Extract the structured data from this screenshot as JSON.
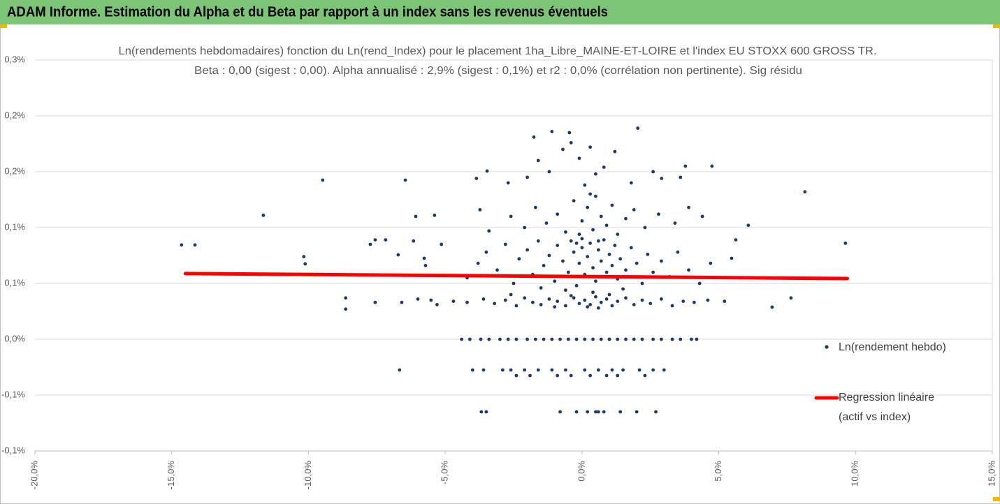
{
  "chart_data": {
    "type": "scatter",
    "header": "ADAM Informe. Estimation du Alpha et du Beta par rapport à un index sans les revenus éventuels",
    "title": "Ln(rendements hebdomadaires) fonction du Ln(rend_Index) pour le placement 1ha_Libre_MAINE-ET-LOIRE et l'index EU STOXX 600 GROSS TR.",
    "subtitle": "Beta : 0,00 (sigest : 0,00). Alpha annualisé : 2,9% (sigest : 0,1%) et r2 : 0,0% (corrélation non pertinente). Sig résidu",
    "xlim": [
      -20,
      15
    ],
    "xticks": [
      {
        "value": -20,
        "label": "-20,0%"
      },
      {
        "value": -15,
        "label": "-15,0%"
      },
      {
        "value": -10,
        "label": "-10,0%"
      },
      {
        "value": -5,
        "label": "-5,0%"
      },
      {
        "value": 0,
        "label": "0,0%"
      },
      {
        "value": 5,
        "label": "5,0%"
      },
      {
        "value": 10,
        "label": "10,0%"
      },
      {
        "value": 15,
        "label": "15,0%"
      }
    ],
    "ylim": [
      -0.1,
      0.25
    ],
    "yticks": [
      {
        "value": 0.25,
        "label": "0,3%"
      },
      {
        "value": 0.2,
        "label": "0,2%"
      },
      {
        "value": 0.15,
        "label": "0,2%"
      },
      {
        "value": 0.1,
        "label": "0,1%"
      },
      {
        "value": 0.05,
        "label": "0,1%"
      },
      {
        "value": 0,
        "label": "0,0%"
      },
      {
        "value": -0.05,
        "label": "-0,1%"
      },
      {
        "value": -0.1,
        "label": "-0,1%"
      }
    ],
    "grid": true,
    "legend": "right",
    "series": [
      {
        "name": "Ln(rendement hebdo)",
        "color": "#203864",
        "x": [
          -14.64,
          -14.15,
          -11.65,
          -10.17,
          -10.12,
          -9.48,
          -8.64,
          -8.64,
          -7.56,
          -7.74,
          -7.56,
          -7.18,
          -6.72,
          -6.67,
          -6.46,
          -6.59,
          -6.08,
          -6.16,
          -5.77,
          -5.72,
          -5.39,
          -5.52,
          -5.14,
          -3.68,
          -3.86,
          -3.47,
          -3.73,
          6.95,
          7.64,
          8.15,
          9.63,
          6.08,
          5.62,
          5.47,
          5.21,
          4.75,
          3.78,
          2.91,
          2.04,
          -1.1,
          -1.76,
          -0.46,
          -4.4,
          -4.1,
          -3.7,
          -3.4,
          -3.0,
          -2.7,
          -2.4,
          -2.0,
          -1.7,
          -1.4,
          -1.1,
          -0.8,
          -0.5,
          -0.2,
          0.1,
          0.4,
          0.7,
          1.0,
          1.3,
          1.6,
          1.9,
          2.2,
          2.6,
          2.9,
          3.3,
          3.6,
          4.0,
          4.19,
          -4.0,
          -3.6,
          -2.9,
          -2.6,
          -2.1,
          -1.6,
          -1.1,
          -0.6,
          0.1,
          0.6,
          1.1,
          1.5,
          2.1,
          2.6,
          3.0,
          -2.4,
          -1.9,
          -0.9,
          -0.4,
          0.3,
          0.9,
          1.3,
          2.3,
          -3.5,
          -0.8,
          -0.2,
          0.2,
          0.5,
          0.6,
          0.8,
          1.4,
          2.0,
          2.7,
          -6.0,
          -5.3,
          -4.7,
          -4.2,
          -3.6,
          -3.2,
          -2.8,
          -2.4,
          -2.1,
          -1.8,
          -1.5,
          -1.2,
          -0.9,
          -0.6,
          -0.3,
          -0.1,
          0.1,
          0.3,
          0.5,
          0.7,
          0.9,
          1.1,
          1.3,
          1.6,
          1.9,
          2.2,
          2.5,
          2.9,
          3.3,
          3.7,
          4.1,
          4.6,
          0.2,
          -0.4,
          1.0,
          -1.0,
          0.6,
          -2.6,
          -4.2,
          -3.8,
          -3.5,
          -3.1,
          -2.8,
          -2.5,
          -2.3,
          -2.0,
          -1.8,
          -1.6,
          -1.4,
          -1.2,
          -1.0,
          -0.9,
          -0.7,
          -0.5,
          -0.4,
          -0.3,
          -0.2,
          -0.1,
          0.0,
          0.1,
          0.2,
          0.3,
          0.4,
          0.5,
          0.6,
          0.7,
          0.8,
          0.9,
          1.0,
          1.1,
          1.2,
          1.3,
          1.4,
          1.6,
          1.8,
          2.0,
          2.2,
          2.4,
          2.6,
          2.9,
          3.2,
          3.5,
          3.9,
          4.3,
          4.7,
          -0.6,
          0.4,
          1.5,
          -1.5,
          0.0,
          0.6,
          -0.2,
          -3.4,
          -2.6,
          -2.1,
          -1.7,
          -1.3,
          -0.9,
          -0.6,
          -0.3,
          0.0,
          0.2,
          0.4,
          0.5,
          0.7,
          0.9,
          1.1,
          1.3,
          1.6,
          1.9,
          2.3,
          2.8,
          3.4,
          3.9,
          4.4,
          -0.1,
          0.3,
          -2.0,
          -1.6,
          -1.2,
          -0.7,
          -0.4,
          -0.1,
          0.3,
          0.5,
          0.8,
          1.2,
          1.8,
          2.6,
          3.6,
          -2.7,
          0.1
        ],
        "values": [
          0.0844,
          0.0844,
          0.111,
          0.074,
          0.0675,
          0.1425,
          0.037,
          0.027,
          0.033,
          0.085,
          0.089,
          0.089,
          0.0756,
          -0.0275,
          0.1425,
          0.033,
          0.11,
          0.088,
          0.0725,
          0.066,
          0.111,
          0.035,
          0.085,
          -0.065,
          0.144,
          0.1506,
          0.116,
          0.0288,
          0.037,
          0.132,
          0.086,
          0.102,
          0.089,
          0.0725,
          0.034,
          0.155,
          0.155,
          0.144,
          0.189,
          0.186,
          0.181,
          0.185,
          0,
          0,
          0,
          0,
          0,
          0,
          0,
          0,
          0,
          0,
          0,
          0,
          0,
          0,
          0,
          0,
          0,
          0,
          0,
          0,
          0,
          0,
          0,
          0,
          0,
          0,
          0,
          0,
          -0.0275,
          -0.0275,
          -0.0275,
          -0.0275,
          -0.0275,
          -0.0275,
          -0.0275,
          -0.0275,
          -0.0275,
          -0.0275,
          -0.0275,
          -0.0275,
          -0.0275,
          -0.0275,
          -0.0275,
          -0.0325,
          -0.0325,
          -0.0325,
          -0.0325,
          -0.0325,
          -0.0325,
          -0.0325,
          -0.0325,
          -0.065,
          -0.065,
          -0.065,
          -0.065,
          -0.065,
          -0.065,
          -0.065,
          -0.065,
          -0.065,
          -0.065,
          0.036,
          0.031,
          0.034,
          0.033,
          0.036,
          0.032,
          0.035,
          0.03,
          0.037,
          0.033,
          0.031,
          0.036,
          0.034,
          0.03,
          0.037,
          0.032,
          0.035,
          0.031,
          0.038,
          0.033,
          0.036,
          0.03,
          0.034,
          0.037,
          0.031,
          0.035,
          0.032,
          0.036,
          0.03,
          0.034,
          0.033,
          0.035,
          0.029,
          0.039,
          0.04,
          0.029,
          0.028,
          0.04,
          0.055,
          0.068,
          0.078,
          0.062,
          0.085,
          0.05,
          0.072,
          0.08,
          0.058,
          0.088,
          0.066,
          0.075,
          0.052,
          0.084,
          0.07,
          0.06,
          0.088,
          0.078,
          0.048,
          0.068,
          0.082,
          0.058,
          0.074,
          0.086,
          0.064,
          0.052,
          0.08,
          0.07,
          0.089,
          0.06,
          0.076,
          0.066,
          0.084,
          0.054,
          0.072,
          0.062,
          0.082,
          0.068,
          0.05,
          0.076,
          0.06,
          0.07,
          0.056,
          0.078,
          0.062,
          0.05,
          0.068,
          0.044,
          0.042,
          0.045,
          0.046,
          0.09,
          0.088,
          0.086,
          0.097,
          0.11,
          0.1,
          0.118,
          0.104,
          0.112,
          0.096,
          0.124,
          0.106,
          0.118,
          0.098,
          0.128,
          0.11,
          0.102,
          0.12,
          0.094,
          0.108,
          0.116,
          0.1,
          0.112,
          0.104,
          0.118,
          0.11,
          0.094,
          0.13,
          0.145,
          0.16,
          0.15,
          0.17,
          0.176,
          0.162,
          0.172,
          0.148,
          0.154,
          0.168,
          0.14,
          0.15,
          0.145,
          0.14,
          0.138
        ]
      },
      {
        "name": "Regression linéaire (actif vs index)",
        "color": "#ff0000",
        "type": "line",
        "x": [
          -14.5,
          9.7
        ],
        "values": [
          0.0588,
          0.0544
        ]
      }
    ]
  }
}
